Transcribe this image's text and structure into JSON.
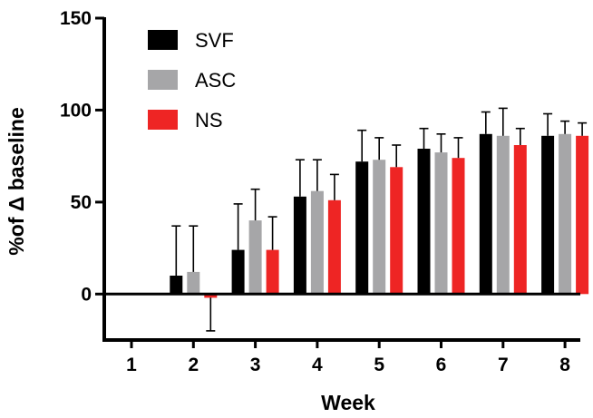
{
  "chart_data": {
    "type": "bar",
    "title": "",
    "xlabel": "Week",
    "ylabel": "%of Δ baseline",
    "categories": [
      "1",
      "2",
      "3",
      "4",
      "5",
      "6",
      "7",
      "8"
    ],
    "ylim": [
      -25,
      150
    ],
    "yticks": [
      0,
      50,
      100,
      150
    ],
    "grid": false,
    "legend": "top-left",
    "series": [
      {
        "name": "SVF",
        "color": "#000000",
        "values": [
          0,
          10,
          24,
          53,
          72,
          79,
          87,
          86
        ],
        "errors": [
          0,
          27,
          25,
          20,
          17,
          11,
          12,
          12
        ]
      },
      {
        "name": "ASC",
        "color": "#a6a6a8",
        "values": [
          0,
          12,
          40,
          56,
          73,
          77,
          86,
          87
        ],
        "errors": [
          0,
          25,
          17,
          17,
          12,
          10,
          15,
          7
        ]
      },
      {
        "name": "NS",
        "color": "#ee2524",
        "values": [
          0,
          -2,
          24,
          51,
          69,
          74,
          81,
          86
        ],
        "errors": [
          0,
          18,
          18,
          14,
          12,
          11,
          9,
          7
        ]
      }
    ]
  }
}
